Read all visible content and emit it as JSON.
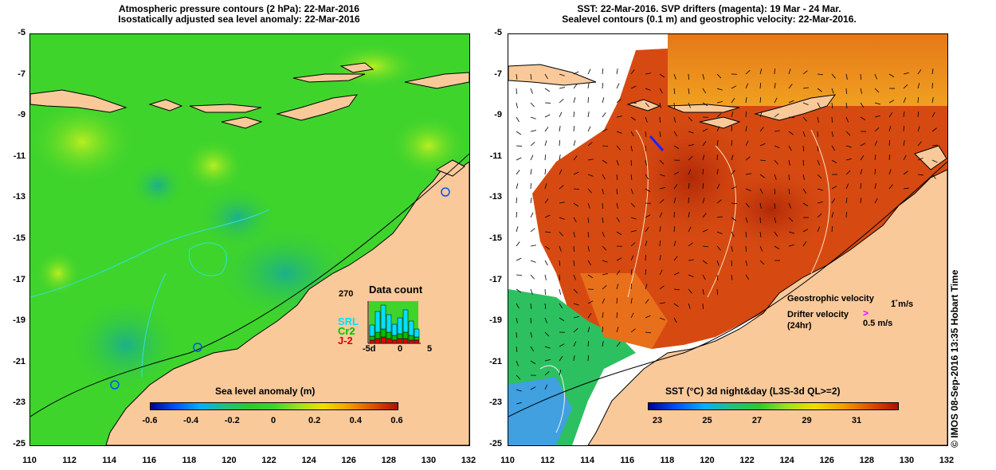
{
  "left_panel": {
    "title_line1": "Atmospheric pressure contours (2 hPa): 22-Mar-2016",
    "title_line2": "Isostatically adjusted sea level anomaly: 22-Mar-2016",
    "colorbar_title": "Sea level anomaly (m)",
    "colorbar_ticks": [
      "-0.6",
      "-0.4",
      "-0.2",
      "0",
      "0.2",
      "0.4",
      "0.6"
    ],
    "data_count": {
      "title": "Data count",
      "max_label": "270",
      "x_labels": [
        "-5d",
        "0",
        "5"
      ],
      "series": [
        {
          "name": "SRL",
          "color": "#00e0ff"
        },
        {
          "name": "Cr2",
          "color": "#00c000"
        },
        {
          "name": "J-2",
          "color": "#e00000"
        }
      ]
    }
  },
  "right_panel": {
    "title_line1": "SST: 22-Mar-2016. SVP drifters (magenta): 19 Mar - 24 Mar.",
    "title_line2": "Sealevel contours (0.1 m) and geostrophic velocity: 22-Mar-2016.",
    "colorbar_title": "SST (°C) 3d night&day (L3S-3d QL>=2)",
    "colorbar_ticks": [
      "23",
      "25",
      "27",
      "29",
      "31"
    ],
    "legend": {
      "geostrophic_label": "Geostrophic velocity",
      "geostrophic_scale": "1 m/s",
      "drifter_label": "Drifter velocity",
      "drifter_sub": "(24hr)",
      "drifter_scale": "0.5 m/s"
    }
  },
  "axes": {
    "y_ticks": [
      "-5",
      "-7",
      "-9",
      "-11",
      "-13",
      "-15",
      "-17",
      "-19",
      "-21",
      "-23",
      "-25"
    ],
    "x_ticks": [
      "110",
      "112",
      "114",
      "116",
      "118",
      "120",
      "122",
      "124",
      "126",
      "128",
      "130",
      "132"
    ]
  },
  "credit": "© IMOS 08-Sep-2016 13:35 Hobart Time",
  "colors": {
    "land": "#f9c99a",
    "ocean_left": "#3dd22d",
    "sst_hot": "#c83a0a",
    "sst_warm": "#e8701a"
  }
}
